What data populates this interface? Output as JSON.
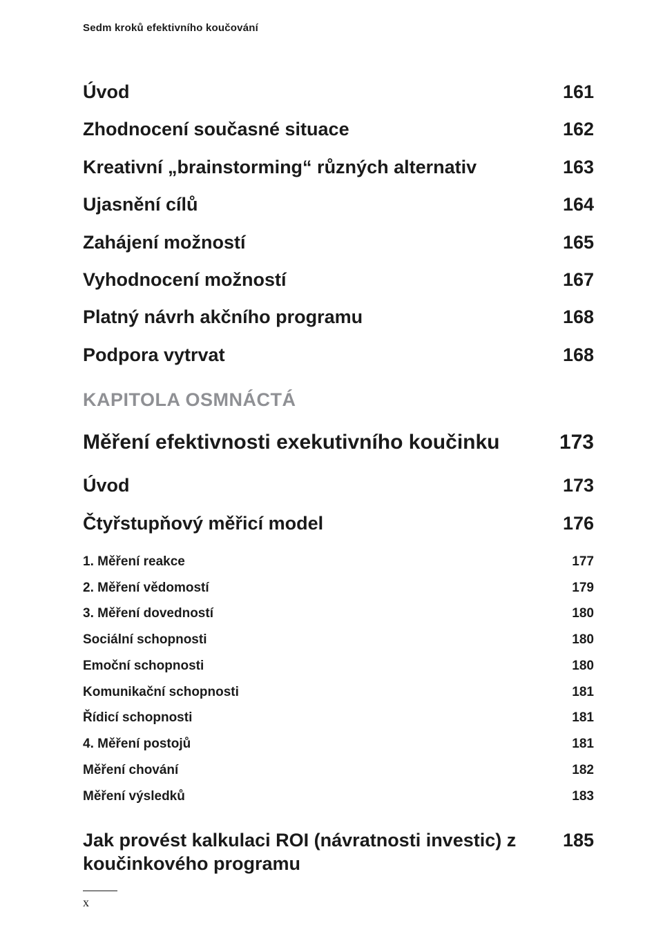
{
  "running_head": "Sedm kroků efektivního koučování",
  "toc": {
    "subsections_top": [
      {
        "label": "Úvod",
        "page": "161"
      },
      {
        "label": "Zhodnocení současné situace",
        "page": "162"
      },
      {
        "label": "Kreativní „brainstorming“ různých alternativ",
        "page": "163"
      },
      {
        "label": "Ujasnění cílů",
        "page": "164"
      },
      {
        "label": "Zahájení možností",
        "page": "165"
      },
      {
        "label": "Vyhodnocení možností",
        "page": "167"
      },
      {
        "label": "Platný návrh akčního programu",
        "page": "168"
      },
      {
        "label": "Podpora vytrvat",
        "page": "168"
      }
    ],
    "chapter_name": "KAPITOLA OSMNÁCTÁ",
    "chapter_title": {
      "label": "Měření efektivnosti exekutivního koučinku",
      "page": "173"
    },
    "subsections_mid": [
      {
        "label": "Úvod",
        "page": "173"
      },
      {
        "label": "Čtyřstupňový měřicí model",
        "page": "176"
      }
    ],
    "items": [
      {
        "label": "1. Měření reakce",
        "page": "177"
      },
      {
        "label": "2. Měření vědomostí",
        "page": "179"
      },
      {
        "label": "3. Měření dovedností",
        "page": "180"
      },
      {
        "label": "Sociální schopnosti",
        "page": "180"
      },
      {
        "label": "Emoční schopnosti",
        "page": "180"
      },
      {
        "label": "Komunikační schopnosti",
        "page": "181"
      },
      {
        "label": "Řídicí schopnosti",
        "page": "181"
      },
      {
        "label": "4. Měření postojů",
        "page": "181"
      },
      {
        "label": "Měření chování",
        "page": "182"
      },
      {
        "label": "Měření výsledků",
        "page": "183"
      }
    ],
    "final": {
      "label": "Jak provést kalkulaci ROI (návratnosti investic) z koučinkového programu",
      "page": "185"
    }
  },
  "footer_page": "x",
  "colors": {
    "text": "#1a1a1a",
    "muted": "#8f9094",
    "background": "#ffffff"
  },
  "typography": {
    "running_head_pt": 15,
    "subsection_pt": 27,
    "chapter_title_pt": 30,
    "item_pt": 19,
    "footer_pt": 18
  }
}
